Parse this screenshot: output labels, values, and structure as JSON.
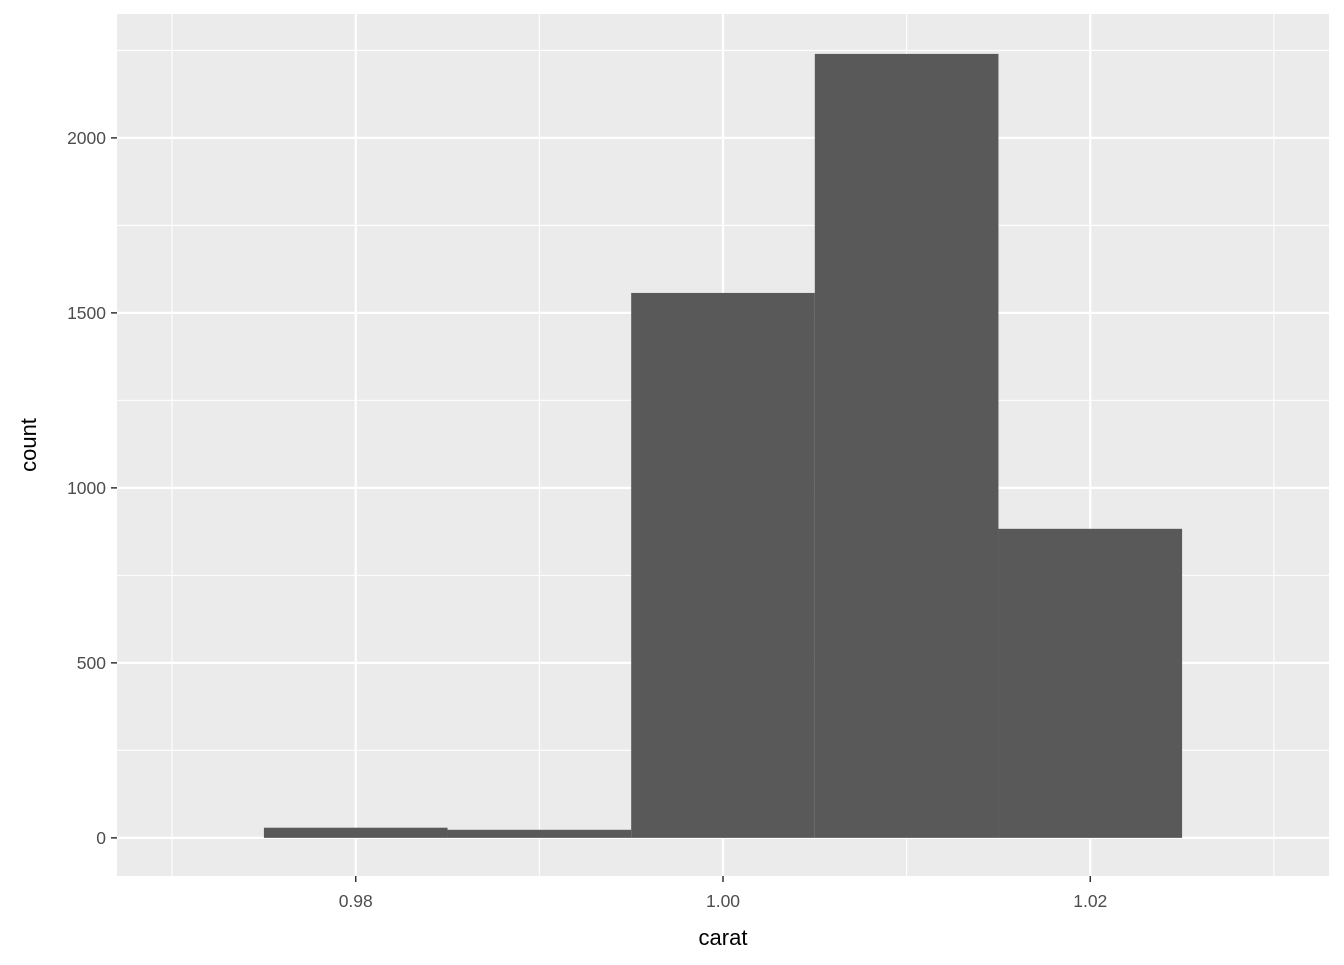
{
  "chart_data": {
    "type": "bar",
    "subtype": "histogram",
    "xlabel": "carat",
    "ylabel": "count",
    "binwidth": 0.01,
    "bins": [
      {
        "center": 0.98,
        "count": 29
      },
      {
        "center": 0.99,
        "count": 23
      },
      {
        "center": 1.0,
        "count": 1557
      },
      {
        "center": 1.01,
        "count": 2240
      },
      {
        "center": 1.02,
        "count": 883
      }
    ],
    "xlim": [
      0.967,
      1.033
    ],
    "ylim": [
      -109,
      2354
    ],
    "xticks": [
      0.98,
      1.0,
      1.02
    ],
    "xtick_labels": [
      "0.98",
      "1.00",
      "1.02"
    ],
    "yticks": [
      0,
      500,
      1000,
      1500,
      2000
    ],
    "ytick_labels": [
      "0",
      "500",
      "1000",
      "1500",
      "2000"
    ],
    "grid": true,
    "colors": {
      "bar": "#595959",
      "panel": "#EBEBEB",
      "grid": "#FFFFFF",
      "text": "#4D4D4D"
    }
  }
}
